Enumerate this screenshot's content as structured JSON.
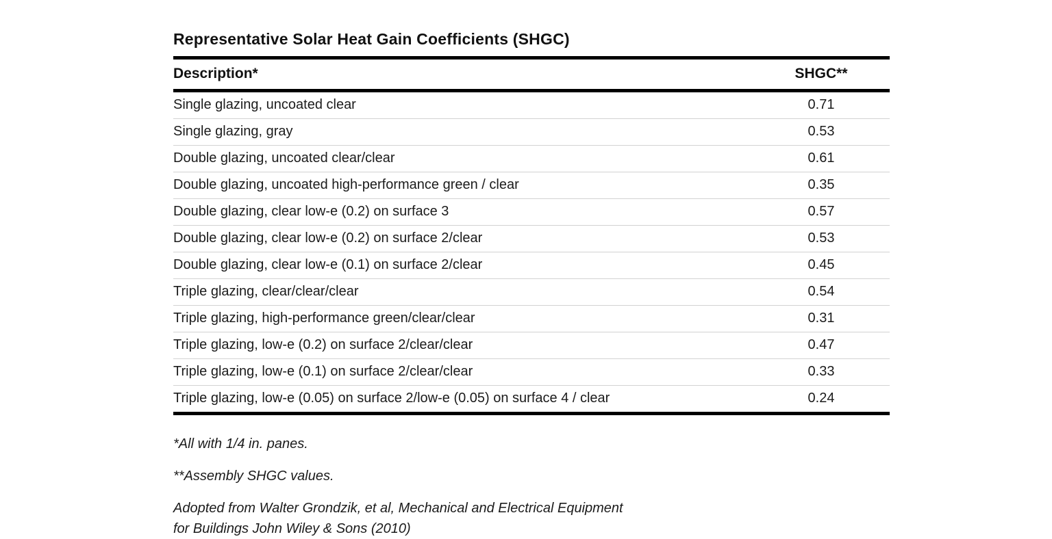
{
  "page": {
    "background": "#ffffff",
    "text_color": "#1b1b1b",
    "rule_color": "#000000",
    "divider_color": "#d2d2d2"
  },
  "table": {
    "title": "Representative Solar Heat Gain Coefficients (SHGC)",
    "columns": [
      "Description*",
      "SHGC**"
    ],
    "rows": [
      {
        "description": "Single glazing, uncoated clear",
        "shgc": "0.71"
      },
      {
        "description": "Single glazing, gray",
        "shgc": "0.53"
      },
      {
        "description": "Double glazing, uncoated clear/clear",
        "shgc": "0.61"
      },
      {
        "description": "Double glazing, uncoated high-performance green / clear",
        "shgc": "0.35"
      },
      {
        "description": "Double glazing, clear low-e (0.2) on surface 3",
        "shgc": "0.57"
      },
      {
        "description": "Double glazing, clear low-e (0.2) on surface 2/clear",
        "shgc": "0.53"
      },
      {
        "description": "Double glazing, clear low-e (0.1) on surface 2/clear",
        "shgc": "0.45"
      },
      {
        "description": "Triple glazing, clear/clear/clear",
        "shgc": "0.54"
      },
      {
        "description": "Triple glazing, high-performance green/clear/clear",
        "shgc": "0.31"
      },
      {
        "description": "Triple glazing, low-e (0.2) on surface 2/clear/clear",
        "shgc": "0.47"
      },
      {
        "description": "Triple glazing, low-e (0.1) on surface 2/clear/clear",
        "shgc": "0.33"
      },
      {
        "description": "Triple glazing, low-e (0.05) on surface 2/low-e (0.05) on surface 4 / clear",
        "shgc": "0.24"
      }
    ]
  },
  "footnotes": {
    "note1": "*All with 1/4 in. panes.",
    "note2": "**Assembly SHGC values.",
    "source_line1": "Adopted from Walter Grondzik, et al, Mechanical and Electrical Equipment",
    "source_line2": "for Buildings John Wiley & Sons (2010)"
  },
  "chart_data": {
    "type": "table",
    "title": "Representative Solar Heat Gain Coefficients (SHGC)",
    "categories": [
      "Single glazing, uncoated clear",
      "Single glazing, gray",
      "Double glazing, uncoated clear/clear",
      "Double glazing, uncoated high-performance green / clear",
      "Double glazing, clear low-e (0.2) on surface 3",
      "Double glazing, clear low-e (0.2) on surface 2/clear",
      "Double glazing, clear low-e (0.1) on surface 2/clear",
      "Triple glazing, clear/clear/clear",
      "Triple glazing, high-performance green/clear/clear",
      "Triple glazing, low-e (0.2) on surface 2/clear/clear",
      "Triple glazing, low-e (0.1) on surface 2/clear/clear",
      "Triple glazing, low-e (0.05) on surface 2/low-e (0.05) on surface 4 / clear"
    ],
    "values": [
      0.71,
      0.53,
      0.61,
      0.35,
      0.57,
      0.53,
      0.45,
      0.54,
      0.31,
      0.47,
      0.33,
      0.24
    ]
  }
}
